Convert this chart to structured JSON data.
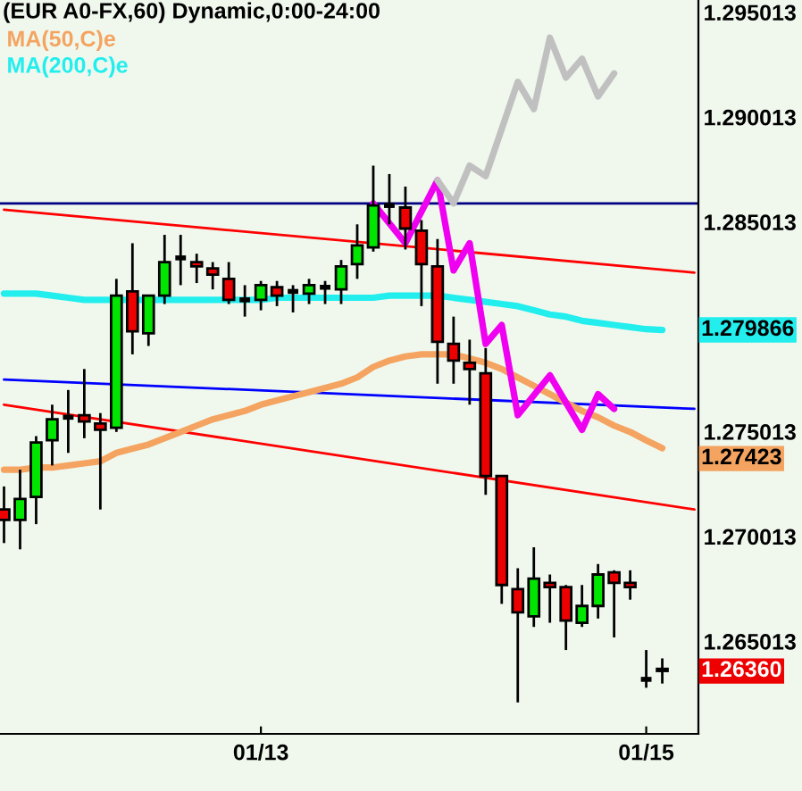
{
  "chart_data": {
    "type": "candlestick",
    "title": "(EUR A0-FX,60) Dynamic,0:00-24:00",
    "categories": [
      null,
      null,
      null,
      null,
      null,
      null,
      null,
      null,
      null,
      null,
      null,
      null,
      null,
      null,
      null,
      null,
      "01/13",
      null,
      null,
      null,
      null,
      null,
      null,
      null,
      null,
      null,
      null,
      null,
      null,
      null,
      null,
      null,
      null,
      null,
      null,
      null,
      null,
      null,
      null,
      null,
      "01/15",
      null,
      null,
      null
    ],
    "ohlc": [
      [
        1.2713,
        1.2724,
        1.2697,
        1.2708
      ],
      [
        1.2708,
        1.2732,
        1.2694,
        1.2718
      ],
      [
        1.2719,
        1.2748,
        1.2706,
        1.2745
      ],
      [
        1.2746,
        1.2763,
        1.2734,
        1.2756
      ],
      [
        1.2757,
        1.277,
        1.274,
        1.2757
      ],
      [
        1.2758,
        1.278,
        1.2747,
        1.2755
      ],
      [
        1.2754,
        1.2759,
        1.2713,
        1.2751
      ],
      [
        1.2752,
        1.2823,
        1.275,
        1.2815
      ],
      [
        1.2817,
        1.284,
        1.2787,
        1.2798
      ],
      [
        1.2797,
        1.2815,
        1.2791,
        1.2815
      ],
      [
        1.2815,
        1.2844,
        1.2811,
        1.2831
      ],
      [
        1.2833,
        1.2844,
        1.282,
        1.2833
      ],
      [
        1.2831,
        1.2835,
        1.2821,
        1.2829
      ],
      [
        1.2828,
        1.2831,
        1.2818,
        1.2825
      ],
      [
        1.2823,
        1.2831,
        1.2811,
        1.2813
      ],
      [
        1.2813,
        1.282,
        1.2805,
        1.2813
      ],
      [
        1.2813,
        1.2822,
        1.2808,
        1.282
      ],
      [
        1.2819,
        1.2822,
        1.281,
        1.2815
      ],
      [
        1.2817,
        1.282,
        1.2807,
        1.2817
      ],
      [
        1.2816,
        1.2823,
        1.2811,
        1.282
      ],
      [
        1.2819,
        1.2822,
        1.2811,
        1.2819
      ],
      [
        1.2818,
        1.2832,
        1.2811,
        1.2829
      ],
      [
        1.283,
        1.2849,
        1.2823,
        1.2839
      ],
      [
        1.2838,
        1.2877,
        1.2836,
        1.2858
      ],
      [
        1.2858,
        1.2873,
        1.2849,
        1.2858
      ],
      [
        1.2857,
        1.2867,
        1.2837,
        1.2847
      ],
      [
        1.2846,
        1.2851,
        1.281,
        1.283
      ],
      [
        1.2829,
        1.2842,
        1.2773,
        1.2793
      ],
      [
        1.2792,
        1.2805,
        1.2773,
        1.2784
      ],
      [
        1.2783,
        1.2794,
        1.2763,
        1.278
      ],
      [
        1.2778,
        1.279,
        1.272,
        1.2729
      ],
      [
        1.2729,
        1.2729,
        1.2668,
        1.2677
      ],
      [
        1.2675,
        1.2685,
        1.2621,
        1.2664
      ],
      [
        1.2662,
        1.2695,
        1.2657,
        1.268
      ],
      [
        1.2678,
        1.2682,
        1.2659,
        1.2676
      ],
      [
        1.2676,
        1.2677,
        1.2646,
        1.266
      ],
      [
        1.2659,
        1.2677,
        1.2657,
        1.2667
      ],
      [
        1.2667,
        1.2687,
        1.2661,
        1.2682
      ],
      [
        1.2683,
        1.2684,
        1.2652,
        1.2678
      ],
      [
        1.2678,
        1.2684,
        1.267,
        1.2676
      ],
      [
        1.2632,
        1.2646,
        1.2628,
        1.2632
      ],
      [
        1.2637,
        1.2642,
        1.263,
        1.2636
      ],
      null,
      null
    ],
    "colors": [
      "#ee0000",
      "#00e600",
      "#00e600",
      "#00e600",
      "#000000",
      "#ee0000",
      "#ee0000",
      "#00e600",
      "#ee0000",
      "#00e600",
      "#00e600",
      "#000000",
      "#ee0000",
      "#ee0000",
      "#ee0000",
      "#000000",
      "#00e600",
      "#ee0000",
      "#000000",
      "#00e600",
      "#000000",
      "#00e600",
      "#00e600",
      "#00e600",
      "#000000",
      "#ee0000",
      "#ee0000",
      "#ee0000",
      "#ee0000",
      "#ee0000",
      "#ee0000",
      "#ee0000",
      "#ee0000",
      "#00e600",
      "#ee0000",
      "#ee0000",
      "#00e600",
      "#00e600",
      "#ee0000",
      "#ee0000",
      "#000000",
      "#ee0000",
      null,
      null
    ],
    "value_labels": [
      null,
      null,
      null,
      null,
      null,
      null,
      null,
      null,
      null,
      null,
      null,
      null,
      null,
      null,
      null,
      null,
      null,
      null,
      null,
      null,
      null,
      null,
      null,
      null,
      null,
      null,
      null,
      null,
      null,
      null,
      null,
      null,
      null,
      null,
      null,
      null,
      null,
      null,
      null,
      null,
      null,
      "1.26360",
      null,
      null
    ],
    "series": [
      {
        "type": "line",
        "color": "#ff0000",
        "values": [
          1.2856,
          null,
          null,
          null,
          null,
          null,
          null,
          null,
          null,
          null,
          null,
          null,
          null,
          null,
          null,
          null,
          null,
          null,
          null,
          null,
          null,
          null,
          null,
          null,
          null,
          null,
          null,
          null,
          null,
          null,
          null,
          null,
          null,
          null,
          null,
          null,
          null,
          null,
          null,
          null,
          null,
          null,
          null,
          1.2826
        ]
      },
      {
        "type": "line",
        "color": "#0000ff",
        "values": [
          1.2775,
          null,
          null,
          null,
          null,
          null,
          null,
          null,
          null,
          null,
          null,
          null,
          null,
          null,
          null,
          null,
          null,
          null,
          null,
          null,
          null,
          null,
          null,
          null,
          null,
          null,
          null,
          null,
          null,
          null,
          null,
          null,
          null,
          null,
          null,
          null,
          null,
          null,
          null,
          null,
          null,
          null,
          null,
          1.2761
        ]
      },
      {
        "type": "line",
        "color": "#ff0000",
        "values": [
          1.2763,
          null,
          null,
          null,
          null,
          null,
          null,
          null,
          null,
          null,
          null,
          null,
          null,
          null,
          null,
          null,
          null,
          null,
          null,
          null,
          null,
          null,
          null,
          null,
          null,
          null,
          null,
          null,
          null,
          null,
          null,
          null,
          null,
          null,
          null,
          null,
          null,
          null,
          null,
          null,
          null,
          null,
          null,
          1.2713
        ]
      },
      {
        "type": "line",
        "name": "MA(50,C)e",
        "color": "#f4a460",
        "values": [
          1.2732,
          1.2732,
          1.2733,
          1.2733,
          1.2734,
          1.2735,
          1.2736,
          1.274,
          1.2742,
          1.2744,
          1.2747,
          1.275,
          1.2753,
          1.2756,
          1.2758,
          1.276,
          1.2763,
          1.2765,
          1.2767,
          1.2769,
          1.2771,
          1.2773,
          1.2776,
          1.2781,
          1.2784,
          1.2786,
          1.2787,
          1.2787,
          1.2787,
          1.2785,
          1.2783,
          1.278,
          1.2776,
          1.2772,
          1.2768,
          1.2764,
          1.276,
          1.2757,
          1.2753,
          1.275,
          1.2746,
          1.27423,
          null,
          null
        ],
        "value_labels": [
          null,
          null,
          null,
          null,
          null,
          null,
          null,
          null,
          null,
          null,
          null,
          null,
          null,
          null,
          null,
          null,
          null,
          null,
          null,
          null,
          null,
          null,
          null,
          null,
          null,
          null,
          null,
          null,
          null,
          null,
          null,
          null,
          null,
          null,
          null,
          null,
          null,
          null,
          null,
          null,
          null,
          "1.27423",
          null,
          null
        ]
      },
      {
        "type": "line",
        "name": "MA(200,C)e",
        "color": "#22eeee",
        "values": [
          1.2816,
          1.2816,
          1.2816,
          1.2815,
          1.2814,
          1.2813,
          1.2813,
          1.2813,
          1.2813,
          1.2813,
          1.2813,
          1.2813,
          1.2813,
          1.2813,
          1.2813,
          1.2813,
          1.2813,
          1.2814,
          1.2814,
          1.2814,
          1.2814,
          1.2814,
          1.2814,
          1.2814,
          1.2815,
          1.2815,
          1.2815,
          1.2815,
          1.2814,
          1.2813,
          1.2812,
          1.2811,
          1.281,
          1.2808,
          1.2806,
          1.2805,
          1.2803,
          1.2802,
          1.2801,
          1.28,
          1.2799,
          1.279866,
          null,
          null
        ],
        "value_labels": [
          null,
          null,
          null,
          null,
          null,
          null,
          null,
          null,
          null,
          null,
          null,
          null,
          null,
          null,
          null,
          null,
          null,
          null,
          null,
          null,
          null,
          null,
          null,
          null,
          null,
          null,
          null,
          null,
          null,
          null,
          null,
          null,
          null,
          null,
          null,
          null,
          null,
          null,
          null,
          null,
          null,
          "1.279866",
          null,
          null
        ]
      },
      {
        "type": "line",
        "color": "#f000f0",
        "values": [
          null,
          null,
          null,
          null,
          null,
          null,
          null,
          null,
          null,
          null,
          null,
          null,
          null,
          null,
          null,
          null,
          null,
          null,
          null,
          null,
          null,
          null,
          null,
          1.2859,
          null,
          1.284,
          null,
          1.287,
          1.2827,
          1.284,
          1.2792,
          1.2801,
          1.2758,
          null,
          1.2777,
          null,
          1.2751,
          1.2768,
          1.2761,
          null,
          null,
          null,
          null,
          null
        ]
      },
      {
        "type": "line",
        "color": "#c0c0c0",
        "values": [
          null,
          null,
          null,
          null,
          null,
          null,
          null,
          null,
          null,
          null,
          null,
          null,
          null,
          null,
          null,
          null,
          null,
          null,
          null,
          null,
          null,
          null,
          null,
          null,
          null,
          null,
          null,
          1.287,
          1.2859,
          1.2877,
          1.2872,
          null,
          1.2917,
          1.2904,
          1.2938,
          1.2919,
          1.2928,
          1.291,
          1.2921,
          null,
          null,
          null,
          null,
          null
        ]
      }
    ],
    "ref_lines": [
      {
        "axis": "y",
        "value": 1.2859,
        "color": "#000080"
      }
    ],
    "ylim": [
      1.2606,
      1.2956
    ],
    "yticks": [
      1.265013,
      1.270013,
      1.275013,
      1.285013,
      1.290013,
      1.295013
    ],
    "legend": "top left"
  }
}
